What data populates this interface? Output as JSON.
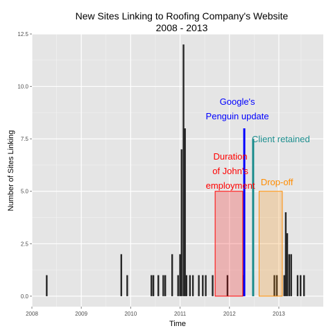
{
  "chart_data": {
    "type": "bar",
    "title": "New Sites Linking to Roofing Company's Website",
    "subtitle": "2008 - 2013",
    "xlabel": "Time",
    "ylabel": "Number of Sites Linking",
    "xlim": [
      2008.0,
      2013.9
    ],
    "ylim": [
      -0.5,
      12.5
    ],
    "grid": true,
    "x_ticks": [
      2008,
      2009,
      2010,
      2011,
      2012,
      2013
    ],
    "x_tick_labels": [
      "2008",
      "2009",
      "2010",
      "2011",
      "2012",
      "2013"
    ],
    "y_ticks": [
      0,
      2.5,
      5,
      7.5,
      10,
      12.5
    ],
    "y_tick_labels": [
      "0.0",
      "2.5",
      "5.0",
      "7.5",
      "10.0",
      "12.5"
    ],
    "points": [
      {
        "x": 2008.3,
        "y": 1
      },
      {
        "x": 2009.81,
        "y": 2
      },
      {
        "x": 2009.93,
        "y": 1
      },
      {
        "x": 2010.42,
        "y": 1
      },
      {
        "x": 2010.46,
        "y": 1
      },
      {
        "x": 2010.56,
        "y": 1
      },
      {
        "x": 2010.66,
        "y": 1
      },
      {
        "x": 2010.7,
        "y": 1
      },
      {
        "x": 2010.84,
        "y": 2
      },
      {
        "x": 2010.96,
        "y": 1
      },
      {
        "x": 2011.0,
        "y": 2
      },
      {
        "x": 2011.03,
        "y": 7
      },
      {
        "x": 2011.07,
        "y": 12
      },
      {
        "x": 2011.1,
        "y": 8
      },
      {
        "x": 2011.13,
        "y": 1
      },
      {
        "x": 2011.2,
        "y": 1
      },
      {
        "x": 2011.26,
        "y": 1
      },
      {
        "x": 2011.38,
        "y": 1
      },
      {
        "x": 2011.46,
        "y": 1
      },
      {
        "x": 2011.52,
        "y": 1
      },
      {
        "x": 2011.66,
        "y": 1
      },
      {
        "x": 2011.96,
        "y": 1
      },
      {
        "x": 2012.29,
        "y": 1
      },
      {
        "x": 2012.48,
        "y": 1
      },
      {
        "x": 2012.91,
        "y": 1
      },
      {
        "x": 2012.96,
        "y": 1
      },
      {
        "x": 2013.11,
        "y": 1
      },
      {
        "x": 2013.14,
        "y": 4
      },
      {
        "x": 2013.17,
        "y": 3
      },
      {
        "x": 2013.21,
        "y": 2
      },
      {
        "x": 2013.25,
        "y": 2
      },
      {
        "x": 2013.38,
        "y": 1
      },
      {
        "x": 2013.44,
        "y": 1
      },
      {
        "x": 2013.51,
        "y": 1
      }
    ],
    "regions": [
      {
        "label": "Duration\nof John's\nemployment",
        "x_start": 2011.71,
        "x_end": 2012.27,
        "y_top": 5,
        "color": "#ff0000"
      },
      {
        "label": "Drop-off",
        "x_start": 2012.6,
        "x_end": 2013.07,
        "y_top": 5,
        "color": "#ff8c00"
      }
    ],
    "events": [
      {
        "label": "Google's\nPenguin update",
        "x": 2012.3,
        "y_top": 8,
        "color": "#0000ff"
      },
      {
        "label": "Client retained",
        "x": 2012.48,
        "y_top": 7.5,
        "color": "#1a8c8c"
      }
    ]
  }
}
